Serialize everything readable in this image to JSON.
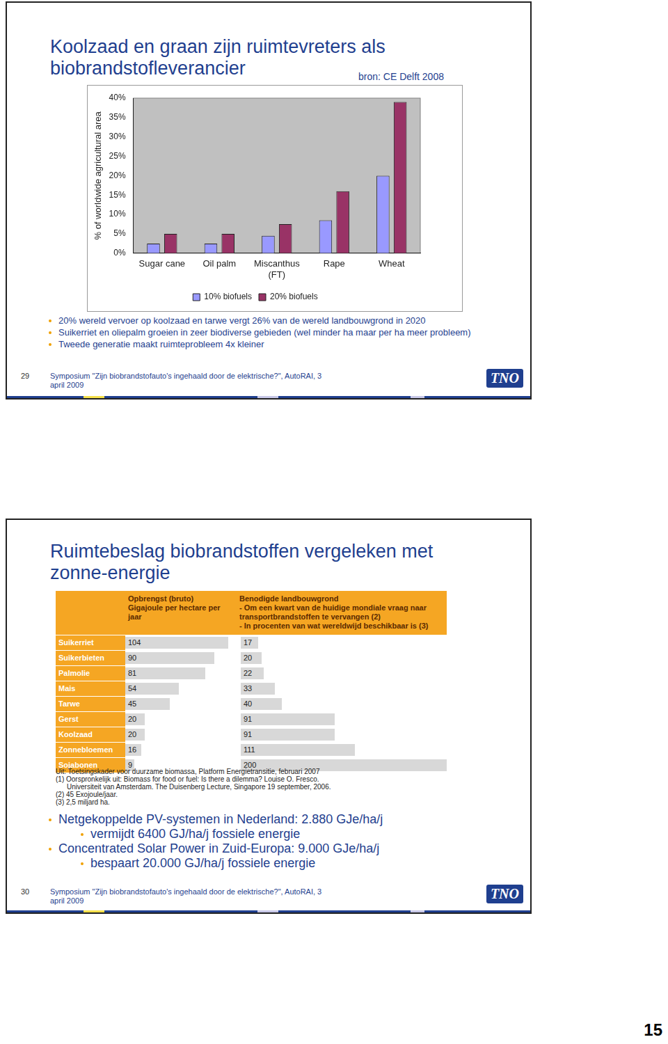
{
  "page_number": "15",
  "slides": [
    {
      "number": "29",
      "title": "Koolzaad en graan zijn ruimtevreters als biobrandstofleverancier",
      "source": "bron: CE Delft 2008",
      "bullets": [
        "20% wereld vervoer op koolzaad en tarwe vergt 26% van de wereld landbouwgrond in 2020",
        "Suikerriet en oliepalm groeien in zeer biodiverse gebieden (wel minder ha maar per ha meer probleem)",
        "Tweede generatie maakt ruimteprobleem 4x kleiner"
      ],
      "footer": "Symposium \"Zijn biobrandstofauto's ingehaald door de elektrische?\", AutoRAI, 3 april 2009",
      "logo": "TNO"
    },
    {
      "number": "30",
      "title": "Ruimtebeslag biobrandstoffen vergeleken met zonne-energie",
      "bullets": [
        {
          "text": "Netgekoppelde PV-systemen in Nederland: 2.880 GJe/ha/j",
          "sub": [
            "vermijdt 6400 GJ/ha/j fossiele energie"
          ]
        },
        {
          "text": "Concentrated Solar Power in Zuid-Europa: 9.000 GJe/ha/j",
          "sub": [
            "bespaart 20.000 GJ/ha/j fossiele energie"
          ]
        }
      ],
      "footer": "Symposium \"Zijn biobrandstofauto's ingehaald door de elektrische?\", AutoRAI, 3 april 2009",
      "logo": "TNO"
    }
  ],
  "chart_data": {
    "type": "bar",
    "y_label": "% of worldwide agricultural area",
    "categories": [
      "Sugar cane",
      "Oil palm",
      "Miscanthus (FT)",
      "Rape",
      "Wheat"
    ],
    "series": [
      {
        "name": "10% biofuels",
        "color": "#9999ff",
        "values": [
          2.5,
          2.5,
          4.5,
          8.5,
          20
        ]
      },
      {
        "name": "20% biofuels",
        "color": "#993366",
        "values": [
          5,
          5,
          7.5,
          16,
          39
        ]
      }
    ],
    "ylim": [
      0,
      40
    ],
    "yticks": [
      {
        "value": 0,
        "label": "0%"
      },
      {
        "value": 5,
        "label": "5%"
      },
      {
        "value": 10,
        "label": "10%"
      },
      {
        "value": 15,
        "label": "15%"
      },
      {
        "value": 20,
        "label": "20%"
      },
      {
        "value": 25,
        "label": "25%"
      },
      {
        "value": 30,
        "label": "30%"
      },
      {
        "value": 35,
        "label": "35%"
      },
      {
        "value": 40,
        "label": "40%"
      }
    ],
    "grid": false,
    "legend": "bottom"
  },
  "table": {
    "headers": [
      [
        "Opbrengst (bruto)",
        "Gigajoule per hectare per jaar"
      ],
      [
        "Benodigde landbouwgrond",
        "- Om een kwart van de huidige mondiale vraag naar transportbrandstoffen te vervangen (2)",
        "- In procenten van wat wereldwijd beschikbaar is (3)"
      ]
    ],
    "rows": [
      [
        "Suikerriet",
        104,
        17
      ],
      [
        "Suikerbieten",
        90,
        20
      ],
      [
        "Palmolie",
        81,
        22
      ],
      [
        "Mais",
        54,
        33
      ],
      [
        "Tarwe",
        45,
        40
      ],
      [
        "Gerst",
        20,
        91
      ],
      [
        "Koolzaad",
        20,
        91
      ],
      [
        "Zonnebloemen",
        16,
        111
      ],
      [
        "Sojabonen",
        9,
        200
      ]
    ],
    "notes": [
      "Uit: Toetsingskader voor duurzame biomassa, Platform Energietransitie, februari 2007",
      "(1) Oorspronkelijk uit: Biomass for food or fuel: Is there a dilemma? Louise O. Fresco.",
      "Universiteit van Amsterdam. The Duisenberg Lecture, Singapore 19 september, 2006.",
      "(2) 45 Exojoule/jaar.",
      "(3) 2,5 miljard ha."
    ]
  }
}
